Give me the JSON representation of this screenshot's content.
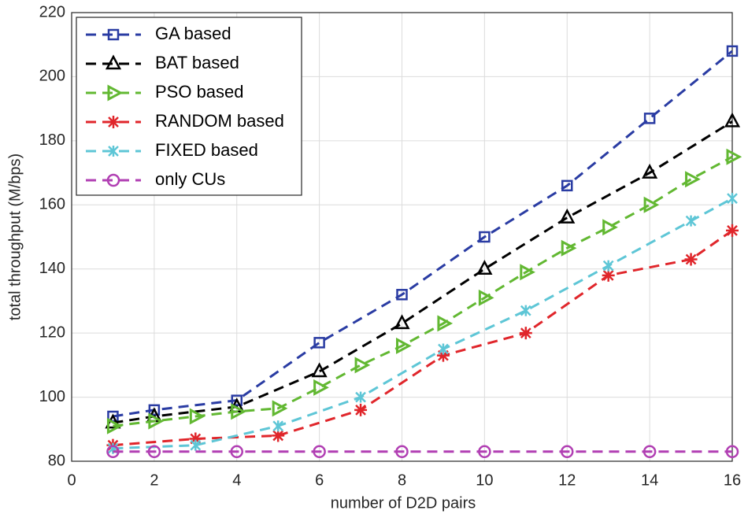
{
  "chart_data": {
    "type": "line",
    "xlabel": "number of D2D pairs",
    "ylabel": "total throughput (M/bps)",
    "xlim": [
      0,
      16
    ],
    "xticks": [
      0,
      2,
      4,
      6,
      8,
      10,
      12,
      14,
      16
    ],
    "ylim": [
      80,
      220
    ],
    "yticks": [
      80,
      100,
      120,
      140,
      160,
      180,
      200,
      220
    ],
    "grid": true,
    "legend": "upper left",
    "series": [
      {
        "name": "GA based",
        "color": "#2a3ca3",
        "marker": "square",
        "x": [
          1,
          2,
          4,
          6,
          8,
          10,
          12,
          14,
          16
        ],
        "values": [
          94,
          96,
          99,
          117,
          132,
          150,
          166,
          187,
          208
        ]
      },
      {
        "name": "BAT based",
        "color": "#000000",
        "marker": "triangle",
        "x": [
          1,
          2,
          4,
          6,
          8,
          10,
          12,
          14,
          16
        ],
        "values": [
          92,
          94,
          97,
          108,
          123,
          140,
          156,
          170,
          186
        ]
      },
      {
        "name": "PSO based",
        "color": "#62b832",
        "marker": "right-triangle",
        "x": [
          1,
          2,
          3,
          4,
          5,
          6,
          7,
          8,
          9,
          10,
          11,
          12,
          13,
          14,
          15,
          16
        ],
        "values": [
          91,
          92.5,
          94,
          95.5,
          96.5,
          103,
          110,
          116,
          123,
          131,
          139,
          146.5,
          153,
          160,
          168,
          175
        ]
      },
      {
        "name": "RANDOM based",
        "color": "#e0262b",
        "marker": "asterisk",
        "x": [
          1,
          3,
          5,
          7,
          9,
          11,
          13,
          15,
          16
        ],
        "values": [
          85,
          87,
          88,
          96,
          113,
          120,
          138,
          143,
          152
        ]
      },
      {
        "name": "FIXED based",
        "color": "#5ec6d6",
        "marker": "x-star",
        "x": [
          1,
          3,
          5,
          7,
          9,
          11,
          13,
          15,
          16
        ],
        "values": [
          84,
          85,
          91,
          100,
          115,
          127,
          141,
          155,
          162
        ]
      },
      {
        "name": "only CUs",
        "color": "#b13fb3",
        "marker": "circle",
        "x": [
          1,
          2,
          4,
          6,
          8,
          10,
          12,
          14,
          16
        ],
        "values": [
          83,
          83,
          83,
          83,
          83,
          83,
          83,
          83,
          83
        ]
      }
    ]
  }
}
